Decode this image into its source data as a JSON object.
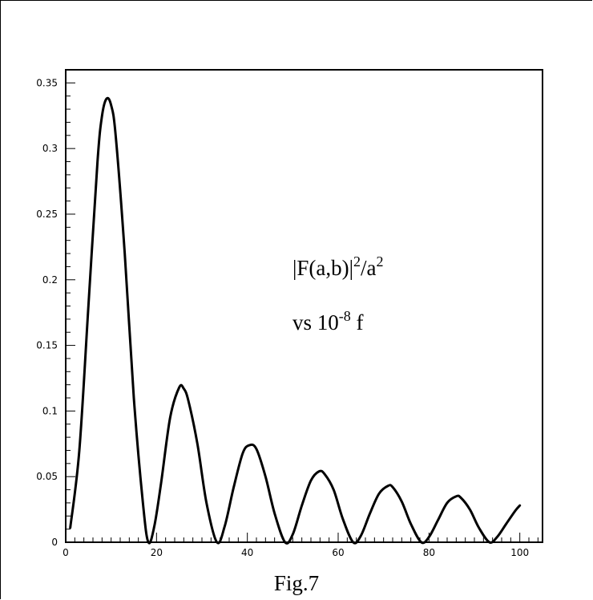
{
  "chart_data": {
    "type": "line",
    "xlim": [
      0,
      105
    ],
    "ylim": [
      0,
      0.36
    ],
    "xticks": [
      0,
      20,
      40,
      60,
      80,
      100
    ],
    "xtick_labels": [
      "0",
      "20",
      "40",
      "60",
      "80",
      "100"
    ],
    "yticks": [
      0,
      0.05,
      0.1,
      0.15,
      0.2,
      0.25,
      0.3,
      0.35
    ],
    "ytick_labels": [
      "0",
      "0.05",
      "0.1",
      "0.15",
      "0.2",
      "0.25",
      "0.3",
      "0.35"
    ],
    "grid": false,
    "annotation": {
      "line1_main": "|F(a,b)|",
      "line1_sup1": "2",
      "line1_mid": "/a",
      "line1_sup2": "2",
      "line2_main": "vs 10",
      "line2_sup": "-8",
      "line2_tail": " f"
    },
    "series": [
      {
        "points": [
          [
            1,
            0.011
          ],
          [
            3,
            0.07
          ],
          [
            5,
            0.18
          ],
          [
            7,
            0.29
          ],
          [
            8,
            0.325
          ],
          [
            9,
            0.338
          ],
          [
            10,
            0.333
          ],
          [
            11,
            0.31
          ],
          [
            13,
            0.22
          ],
          [
            15,
            0.11
          ],
          [
            17,
            0.03
          ],
          [
            18.2,
            0.0
          ],
          [
            19.5,
            0.012
          ],
          [
            21,
            0.045
          ],
          [
            23,
            0.095
          ],
          [
            25,
            0.118
          ],
          [
            26,
            0.117
          ],
          [
            27,
            0.108
          ],
          [
            29,
            0.075
          ],
          [
            31,
            0.03
          ],
          [
            33.3,
            0.0
          ],
          [
            35,
            0.012
          ],
          [
            37,
            0.042
          ],
          [
            39,
            0.068
          ],
          [
            40.5,
            0.074
          ],
          [
            42,
            0.071
          ],
          [
            44,
            0.05
          ],
          [
            46,
            0.022
          ],
          [
            48.3,
            0.0
          ],
          [
            50,
            0.006
          ],
          [
            52,
            0.028
          ],
          [
            54,
            0.047
          ],
          [
            55.8,
            0.054
          ],
          [
            57,
            0.052
          ],
          [
            59,
            0.04
          ],
          [
            61,
            0.018
          ],
          [
            63.3,
            0.0
          ],
          [
            65,
            0.005
          ],
          [
            67,
            0.022
          ],
          [
            69,
            0.037
          ],
          [
            71,
            0.043
          ],
          [
            72,
            0.042
          ],
          [
            74,
            0.031
          ],
          [
            76,
            0.014
          ],
          [
            78.3,
            0.0
          ],
          [
            80,
            0.004
          ],
          [
            82,
            0.017
          ],
          [
            84,
            0.03
          ],
          [
            86,
            0.035
          ],
          [
            87,
            0.034
          ],
          [
            89,
            0.025
          ],
          [
            91,
            0.011
          ],
          [
            93.3,
            0.0
          ],
          [
            95,
            0.004
          ],
          [
            97,
            0.014
          ],
          [
            99,
            0.024
          ],
          [
            100,
            0.028
          ]
        ]
      }
    ]
  },
  "caption": "Fig.7"
}
